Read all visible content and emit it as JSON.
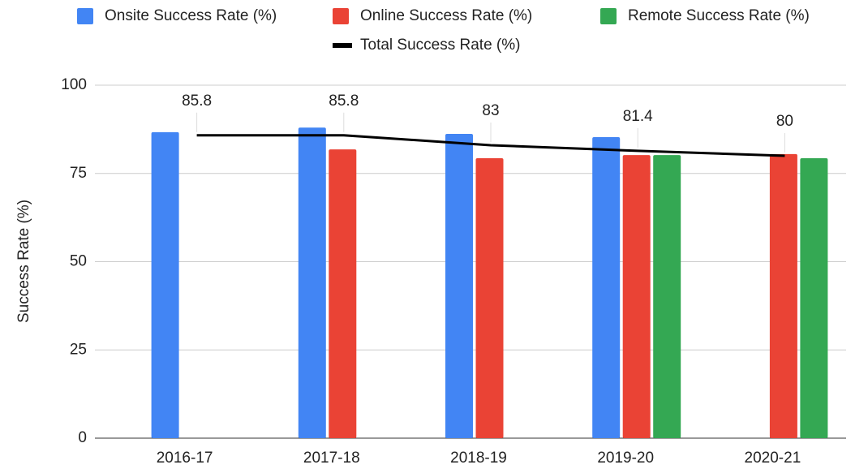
{
  "chart_data": {
    "type": "bar",
    "y_axis_label": "Success Rate (%)",
    "categories": [
      "2016-17",
      "2017-18",
      "2018-19",
      "2019-20",
      "2020-21"
    ],
    "series": [
      {
        "name": "Onsite Success Rate (%)",
        "color": "#4285f4",
        "values": [
          86.7,
          88.0,
          86.2,
          85.3,
          null
        ]
      },
      {
        "name": "Online Success Rate (%)",
        "color": "#ea4335",
        "values": [
          null,
          81.8,
          79.3,
          80.2,
          80.5
        ]
      },
      {
        "name": "Remote Success Rate (%)",
        "color": "#34a853",
        "values": [
          null,
          null,
          null,
          80.2,
          79.3
        ]
      },
      {
        "name": "Total Success Rate (%)",
        "color": "#000000",
        "type": "line",
        "values": [
          85.8,
          85.8,
          83,
          81.4,
          80
        ]
      }
    ],
    "ylim": [
      0,
      100
    ],
    "yticks": [
      0,
      25,
      50,
      75,
      100
    ],
    "grid": true,
    "legend": "top"
  }
}
